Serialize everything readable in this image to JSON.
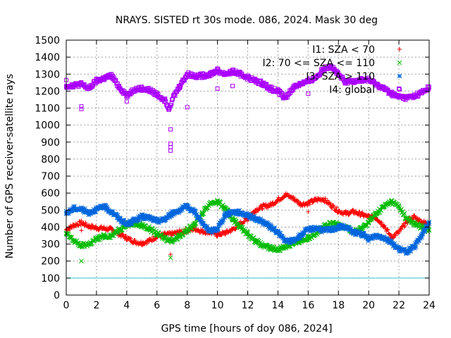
{
  "chart_data": {
    "type": "scatter",
    "title": "NRAYS. SISTED rt 30s mode. 086, 2024. Mask 30 deg",
    "xlabel": "GPS time [hours of doy 086, 2024]",
    "ylabel": "Number of GPS receiver-satellite rays",
    "xlim": [
      0,
      24
    ],
    "ylim": [
      0,
      1500
    ],
    "xticks": [
      0,
      2,
      4,
      6,
      8,
      10,
      12,
      14,
      16,
      18,
      20,
      22,
      24
    ],
    "yticks": [
      0,
      100,
      200,
      300,
      400,
      500,
      600,
      700,
      800,
      900,
      1000,
      1100,
      1200,
      1300,
      1400,
      1500
    ],
    "grid": true,
    "legend_position": "top-right",
    "reference_line": {
      "y": 100,
      "color": "#33cccc"
    },
    "series": [
      {
        "name": "I1: SZA < 70",
        "marker": "+",
        "color": "#ff0000",
        "points": [
          [
            0,
            385
          ],
          [
            0.5,
            410
          ],
          [
            1,
            425
          ],
          [
            1.5,
            405
          ],
          [
            2,
            395
          ],
          [
            2.5,
            392
          ],
          [
            3,
            385
          ],
          [
            3.5,
            360
          ],
          [
            4,
            335
          ],
          [
            4.5,
            315
          ],
          [
            5,
            305
          ],
          [
            5.5,
            320
          ],
          [
            6,
            345
          ],
          [
            6.5,
            355
          ],
          [
            7,
            360
          ],
          [
            7.5,
            370
          ],
          [
            8,
            380
          ],
          [
            8.5,
            390
          ],
          [
            9,
            375
          ],
          [
            9.5,
            370
          ],
          [
            10,
            355
          ],
          [
            10.5,
            365
          ],
          [
            11,
            385
          ],
          [
            11.5,
            420
          ],
          [
            12,
            450
          ],
          [
            12.5,
            500
          ],
          [
            13,
            520
          ],
          [
            13.5,
            530
          ],
          [
            14,
            560
          ],
          [
            14.5,
            590
          ],
          [
            15,
            570
          ],
          [
            15.5,
            535
          ],
          [
            16,
            540
          ],
          [
            16.5,
            560
          ],
          [
            17,
            565
          ],
          [
            17.5,
            530
          ],
          [
            18,
            495
          ],
          [
            18.5,
            480
          ],
          [
            19,
            490
          ],
          [
            19.5,
            475
          ],
          [
            20,
            460
          ],
          [
            20.5,
            455
          ],
          [
            21,
            410
          ],
          [
            21.5,
            340
          ],
          [
            22,
            370
          ],
          [
            22.5,
            430
          ],
          [
            23,
            460
          ],
          [
            23.5,
            430
          ],
          [
            24,
            420
          ]
        ],
        "outliers": [
          [
            16,
            490
          ],
          [
            1,
            380
          ],
          [
            6.9,
            240
          ]
        ]
      },
      {
        "name": "I2: 70 <= SZA <= 110",
        "marker": "x",
        "color": "#00bb00",
        "points": [
          [
            0,
            360
          ],
          [
            0.5,
            320
          ],
          [
            1,
            290
          ],
          [
            1.5,
            300
          ],
          [
            2,
            330
          ],
          [
            2.5,
            345
          ],
          [
            3,
            350
          ],
          [
            3.5,
            385
          ],
          [
            4,
            415
          ],
          [
            4.5,
            420
          ],
          [
            5,
            410
          ],
          [
            5.5,
            390
          ],
          [
            6,
            360
          ],
          [
            6.5,
            335
          ],
          [
            7,
            320
          ],
          [
            7.5,
            350
          ],
          [
            8,
            380
          ],
          [
            8.5,
            420
          ],
          [
            9,
            480
          ],
          [
            9.5,
            540
          ],
          [
            10,
            550
          ],
          [
            10.5,
            510
          ],
          [
            11,
            450
          ],
          [
            11.5,
            400
          ],
          [
            12,
            360
          ],
          [
            12.5,
            320
          ],
          [
            13,
            290
          ],
          [
            13.5,
            275
          ],
          [
            14,
            270
          ],
          [
            14.5,
            285
          ],
          [
            15,
            300
          ],
          [
            15.5,
            320
          ],
          [
            16,
            335
          ],
          [
            16.5,
            365
          ],
          [
            17,
            400
          ],
          [
            17.5,
            420
          ],
          [
            18,
            415
          ],
          [
            18.5,
            400
          ],
          [
            19,
            370
          ],
          [
            19.5,
            390
          ],
          [
            20,
            430
          ],
          [
            20.5,
            480
          ],
          [
            21,
            520
          ],
          [
            21.5,
            550
          ],
          [
            22,
            520
          ],
          [
            22.5,
            450
          ],
          [
            23,
            420
          ],
          [
            23.5,
            400
          ],
          [
            24,
            380
          ]
        ],
        "outliers": [
          [
            1,
            200
          ],
          [
            6.9,
            220
          ]
        ]
      },
      {
        "name": "I3: SZA > 110",
        "marker": "*",
        "color": "#0066dd",
        "points": [
          [
            0,
            480
          ],
          [
            0.5,
            510
          ],
          [
            1,
            505
          ],
          [
            1.5,
            485
          ],
          [
            2,
            505
          ],
          [
            2.5,
            520
          ],
          [
            3,
            490
          ],
          [
            3.5,
            450
          ],
          [
            4,
            415
          ],
          [
            4.5,
            440
          ],
          [
            5,
            460
          ],
          [
            5.5,
            455
          ],
          [
            6,
            435
          ],
          [
            6.5,
            445
          ],
          [
            7,
            480
          ],
          [
            7.5,
            500
          ],
          [
            8,
            520
          ],
          [
            8.5,
            490
          ],
          [
            9,
            420
          ],
          [
            9.5,
            375
          ],
          [
            10,
            390
          ],
          [
            10.5,
            470
          ],
          [
            11,
            490
          ],
          [
            11.5,
            485
          ],
          [
            12,
            470
          ],
          [
            12.5,
            450
          ],
          [
            13,
            430
          ],
          [
            13.5,
            400
          ],
          [
            14,
            370
          ],
          [
            14.5,
            315
          ],
          [
            15,
            320
          ],
          [
            15.5,
            350
          ],
          [
            16,
            385
          ],
          [
            16.5,
            395
          ],
          [
            17,
            380
          ],
          [
            17.5,
            385
          ],
          [
            18,
            400
          ],
          [
            18.5,
            400
          ],
          [
            19,
            370
          ],
          [
            19.5,
            360
          ],
          [
            20,
            330
          ],
          [
            20.5,
            350
          ],
          [
            21,
            340
          ],
          [
            21.5,
            310
          ],
          [
            22,
            270
          ],
          [
            22.5,
            255
          ],
          [
            23,
            280
          ],
          [
            23.5,
            350
          ],
          [
            24,
            430
          ]
        ]
      },
      {
        "name": "I4: global",
        "marker": "square",
        "color": "#aa00ff",
        "points": [
          [
            0,
            1230
          ],
          [
            0.5,
            1235
          ],
          [
            1,
            1240
          ],
          [
            1.5,
            1215
          ],
          [
            2,
            1260
          ],
          [
            2.5,
            1275
          ],
          [
            3,
            1290
          ],
          [
            3.5,
            1225
          ],
          [
            4,
            1175
          ],
          [
            4.5,
            1210
          ],
          [
            5,
            1215
          ],
          [
            5.5,
            1205
          ],
          [
            6,
            1180
          ],
          [
            6.5,
            1150
          ],
          [
            6.8,
            1100
          ],
          [
            7,
            1150
          ],
          [
            7.5,
            1230
          ],
          [
            8,
            1300
          ],
          [
            8.5,
            1290
          ],
          [
            9,
            1290
          ],
          [
            9.5,
            1300
          ],
          [
            10,
            1320
          ],
          [
            10.5,
            1300
          ],
          [
            11,
            1315
          ],
          [
            11.5,
            1300
          ],
          [
            12,
            1280
          ],
          [
            12.5,
            1260
          ],
          [
            13,
            1245
          ],
          [
            13.5,
            1215
          ],
          [
            14,
            1200
          ],
          [
            14.5,
            1160
          ],
          [
            15,
            1220
          ],
          [
            15.5,
            1245
          ],
          [
            16,
            1255
          ],
          [
            16.5,
            1280
          ],
          [
            17,
            1330
          ],
          [
            17.5,
            1350
          ],
          [
            18,
            1295
          ],
          [
            18.5,
            1250
          ],
          [
            19,
            1260
          ],
          [
            19.5,
            1265
          ],
          [
            20,
            1265
          ],
          [
            20.5,
            1240
          ],
          [
            21,
            1215
          ],
          [
            21.5,
            1185
          ],
          [
            22,
            1165
          ],
          [
            22.5,
            1160
          ],
          [
            23,
            1170
          ],
          [
            23.5,
            1190
          ],
          [
            24,
            1220
          ]
        ],
        "outliers": [
          [
            0,
            1265
          ],
          [
            1,
            1095
          ],
          [
            1,
            1110
          ],
          [
            4,
            1140
          ],
          [
            6.9,
            975
          ],
          [
            6.9,
            890
          ],
          [
            6.9,
            870
          ],
          [
            6.9,
            850
          ],
          [
            8,
            1105
          ],
          [
            10,
            1215
          ],
          [
            11,
            1230
          ],
          [
            16,
            1185
          ],
          [
            22,
            1215
          ]
        ]
      }
    ]
  }
}
